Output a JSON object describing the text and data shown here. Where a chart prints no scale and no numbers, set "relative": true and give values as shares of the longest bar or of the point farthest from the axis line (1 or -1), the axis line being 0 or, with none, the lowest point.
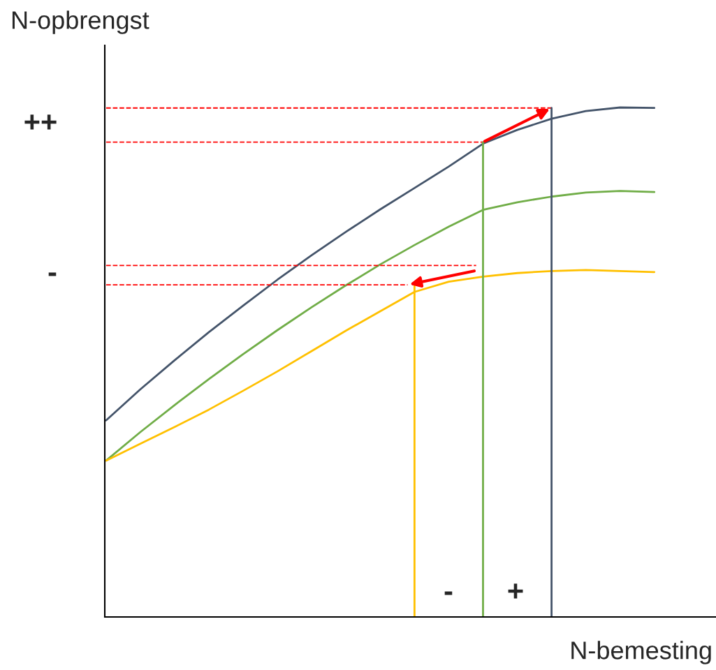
{
  "chart_data": {
    "type": "line",
    "relative": true,
    "xlabel": "N-bemesting",
    "ylabel": "N-opbrengst",
    "categories": [
      null,
      null,
      null,
      null,
      null,
      null,
      null,
      null,
      null,
      null,
      null,
      null,
      null,
      null,
      null,
      null,
      null
    ],
    "series": [
      {
        "color": "#44546a",
        "values": [
          0.386,
          0.447,
          0.504,
          0.559,
          0.611,
          0.662,
          0.71,
          0.756,
          0.8,
          0.842,
          0.884,
          0.929,
          0.956,
          0.978,
          0.993,
          1.0,
          0.999
        ]
      },
      {
        "color": "#70ad47",
        "values": [
          0.307,
          0.363,
          0.416,
          0.467,
          0.516,
          0.563,
          0.608,
          0.651,
          0.692,
          0.73,
          0.766,
          0.799,
          0.814,
          0.825,
          0.833,
          0.836,
          0.834
        ]
      },
      {
        "color": "#ffc000",
        "values": [
          0.307,
          0.34,
          0.373,
          0.407,
          0.444,
          0.482,
          0.522,
          0.562,
          0.6,
          0.638,
          0.658,
          0.668,
          0.675,
          0.679,
          0.681,
          0.679,
          0.677
        ]
      }
    ],
    "ref_lines": [
      {
        "axis": "y",
        "value": 0.999,
        "color": "#ff0000",
        "line_style": "dashed"
      },
      {
        "axis": "y",
        "value": 0.932,
        "color": "#ff0000",
        "line_style": "dashed"
      },
      {
        "axis": "y",
        "value": 0.69,
        "color": "#ff0000",
        "line_style": "dashed"
      },
      {
        "axis": "y",
        "value": 0.652,
        "color": "#ff0000",
        "line_style": "dashed"
      }
    ],
    "annotations": [
      "++",
      "-",
      "-",
      "+"
    ]
  }
}
